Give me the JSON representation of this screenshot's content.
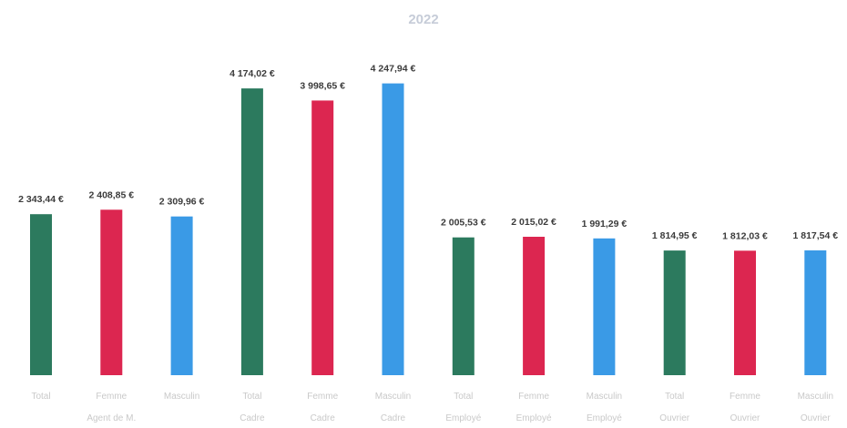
{
  "chart_data": {
    "type": "bar",
    "title": "2022",
    "xlabel": "",
    "ylabel": "",
    "ylim": [
      0,
      4600
    ],
    "grid": false,
    "legend": "none",
    "categories": [
      [
        "Total"
      ],
      [
        "Femme",
        "Agent de M."
      ],
      [
        "Masculin"
      ],
      [
        "Total",
        "Cadre"
      ],
      [
        "Femme",
        "Cadre"
      ],
      [
        "Masculin",
        "Cadre"
      ],
      [
        "Total",
        "Employé"
      ],
      [
        "Femme",
        "Employé"
      ],
      [
        "Masculin",
        "Employé"
      ],
      [
        "Total",
        "Ouvrier"
      ],
      [
        "Femme",
        "Ouvrier"
      ],
      [
        "Masculin",
        "Ouvrier"
      ]
    ],
    "values": [
      2343.44,
      2408.85,
      2309.96,
      4174.02,
      3998.65,
      4247.94,
      2005.53,
      2015.02,
      1991.29,
      1814.95,
      1812.03,
      1817.54
    ],
    "value_labels": [
      "2 343,44 €",
      "2 408,85 €",
      "2 309,96 €",
      "4 174,02 €",
      "3 998,65 €",
      "4 247,94 €",
      "2 005,53 €",
      "2 015,02 €",
      "1 991,29 €",
      "1 814,95 €",
      "1 812,03 €",
      "1 817,54 €"
    ],
    "colors": [
      "#2c7a5e",
      "#dc2650",
      "#3a9ae6",
      "#2c7a5e",
      "#dc2650",
      "#3a9ae6",
      "#2c7a5e",
      "#dc2650",
      "#3a9ae6",
      "#2c7a5e",
      "#dc2650",
      "#3a9ae6"
    ]
  }
}
